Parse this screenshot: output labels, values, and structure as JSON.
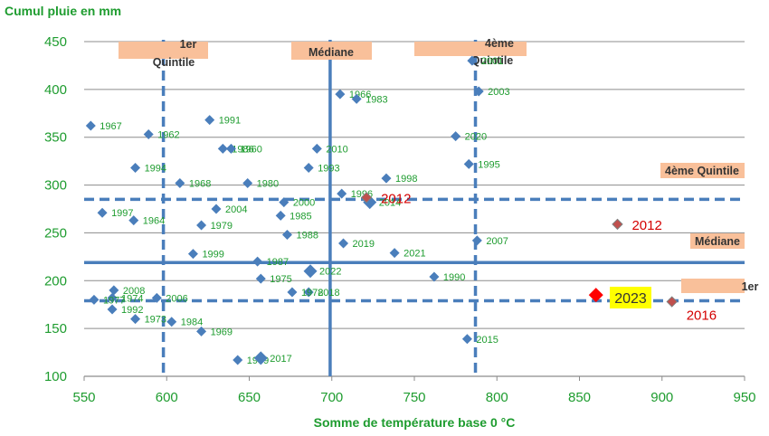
{
  "chart_data": {
    "type": "scatter",
    "xlabel": "Somme de température base 0 °C",
    "ylabel": "Cumul pluie en mm",
    "xlim": [
      550,
      950
    ],
    "ylim": [
      100,
      450
    ],
    "xticks": [
      550,
      600,
      650,
      700,
      750,
      800,
      850,
      900,
      950
    ],
    "yticks": [
      100,
      150,
      200,
      250,
      300,
      350,
      400,
      450
    ],
    "grid": "horizontal",
    "colors": {
      "points": "#4a7ebb",
      "lines": "#4a7ebb",
      "highlight": "#ff0000",
      "highlight_2016_2012": "#c0504d",
      "annotation_box": "#f9c09a",
      "text_green": "#1e9c2f",
      "text_red": "#d40000",
      "yellow_box": "#ffff00"
    },
    "reference_lines": {
      "vertical": [
        {
          "x": 598,
          "style": "dashed"
        },
        {
          "x": 699,
          "style": "solid"
        },
        {
          "x": 787,
          "style": "dashed"
        }
      ],
      "horizontal": [
        {
          "y": 285,
          "style": "dashed"
        },
        {
          "y": 219,
          "style": "solid"
        },
        {
          "y": 179,
          "style": "dashed"
        }
      ]
    },
    "annotations": [
      {
        "text": "1er\nQuintile"
      },
      {
        "text": "Médiane"
      },
      {
        "text": "4ème\nQuintile"
      },
      {
        "text": "4ème Quintile"
      },
      {
        "text": "Médiane"
      },
      {
        "text": "1er"
      }
    ],
    "points": [
      {
        "label": "1967",
        "x": 554,
        "y": 362
      },
      {
        "label": "1962",
        "x": 589,
        "y": 353
      },
      {
        "label": "1994",
        "x": 581,
        "y": 318
      },
      {
        "label": "1997",
        "x": 561,
        "y": 271
      },
      {
        "label": "1964",
        "x": 580,
        "y": 263
      },
      {
        "label": "1991",
        "x": 626,
        "y": 368
      },
      {
        "label": "1986",
        "x": 634,
        "y": 338
      },
      {
        "label": "1960",
        "x": 639,
        "y": 338
      },
      {
        "label": "1968",
        "x": 608,
        "y": 302
      },
      {
        "label": "1980",
        "x": 649,
        "y": 302
      },
      {
        "label": "2004",
        "x": 630,
        "y": 275
      },
      {
        "label": "1979",
        "x": 621,
        "y": 258
      },
      {
        "label": "2000",
        "x": 671,
        "y": 282
      },
      {
        "label": "1985",
        "x": 669,
        "y": 268
      },
      {
        "label": "2010",
        "x": 691,
        "y": 338
      },
      {
        "label": "1993",
        "x": 686,
        "y": 318
      },
      {
        "label": "1966",
        "x": 705,
        "y": 395
      },
      {
        "label": "1983",
        "x": 715,
        "y": 390
      },
      {
        "label": "1998",
        "x": 733,
        "y": 307
      },
      {
        "label": "1996",
        "x": 706,
        "y": 291
      },
      {
        "label": "2012",
        "x": 721,
        "y": 287
      },
      {
        "label": "2014",
        "x": 723,
        "y": 282
      },
      {
        "label": "1988",
        "x": 673,
        "y": 248
      },
      {
        "label": "2019",
        "x": 707,
        "y": 239
      },
      {
        "label": "1999",
        "x": 616,
        "y": 228
      },
      {
        "label": "1987",
        "x": 655,
        "y": 220
      },
      {
        "label": "2021",
        "x": 738,
        "y": 229
      },
      {
        "label": "2022",
        "x": 687,
        "y": 210
      },
      {
        "label": "1975",
        "x": 657,
        "y": 202
      },
      {
        "label": "2018",
        "x": 686,
        "y": 188
      },
      {
        "label": "1978",
        "x": 676,
        "y": 188
      },
      {
        "label": "1990",
        "x": 762,
        "y": 204
      },
      {
        "label": "2008",
        "x": 568,
        "y": 190
      },
      {
        "label": "1974",
        "x": 567,
        "y": 182
      },
      {
        "label": "1977",
        "x": 556,
        "y": 180
      },
      {
        "label": "2006",
        "x": 594,
        "y": 182
      },
      {
        "label": "1992",
        "x": 567,
        "y": 170
      },
      {
        "label": "1973",
        "x": 581,
        "y": 160
      },
      {
        "label": "1984",
        "x": 603,
        "y": 157
      },
      {
        "label": "1969",
        "x": 621,
        "y": 147
      },
      {
        "label": "1989",
        "x": 643,
        "y": 117
      },
      {
        "label": "2017",
        "x": 657,
        "y": 119
      },
      {
        "label": "2020",
        "x": 775,
        "y": 351
      },
      {
        "label": "1995",
        "x": 783,
        "y": 322
      },
      {
        "label": "2003",
        "x": 789,
        "y": 398
      },
      {
        "label": "2001",
        "x": 785,
        "y": 430
      },
      {
        "label": "2007",
        "x": 788,
        "y": 242
      },
      {
        "label": "2015",
        "x": 782,
        "y": 139
      },
      {
        "label": "2012",
        "x": 873,
        "y": 259
      },
      {
        "label": "2016",
        "x": 906,
        "y": 178
      },
      {
        "label": "2023",
        "x": 860,
        "y": 185
      }
    ],
    "highlighted": [
      "2023",
      "2016",
      "2012"
    ]
  }
}
